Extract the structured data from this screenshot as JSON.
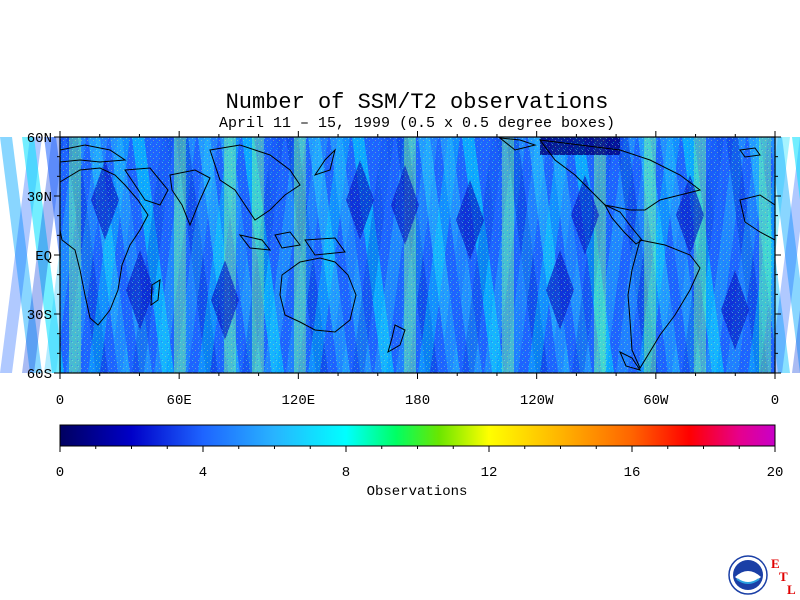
{
  "title": "Number of SSM/T2 observations",
  "subtitle": "April 11 – 15, 1999 (0.5 x 0.5 degree boxes)",
  "map": {
    "lat_labels": [
      "60N",
      "30N",
      "EQ",
      "30S",
      "60S"
    ],
    "lon_labels": [
      "0",
      "60E",
      "120E",
      "180",
      "120W",
      "60W",
      "0"
    ],
    "lat_range": [
      -60,
      60
    ],
    "lon_range": [
      0,
      360
    ],
    "projection": "equirectangular"
  },
  "colorbar": {
    "min": 0,
    "max": 20,
    "tick_labels": [
      "0",
      "4",
      "8",
      "12",
      "16",
      "20"
    ],
    "label": "Observations",
    "colors": [
      "#000060",
      "#0000c8",
      "#1e64ff",
      "#28b4ff",
      "#00ffff",
      "#00ff64",
      "#00e600",
      "#ffff00",
      "#ffb400",
      "#ff6400",
      "#ff0000",
      "#e6008c",
      "#c800c8"
    ]
  },
  "logo": {
    "icon": "noaa-logo-icon",
    "letters": [
      "E",
      "T",
      "L"
    ]
  }
}
